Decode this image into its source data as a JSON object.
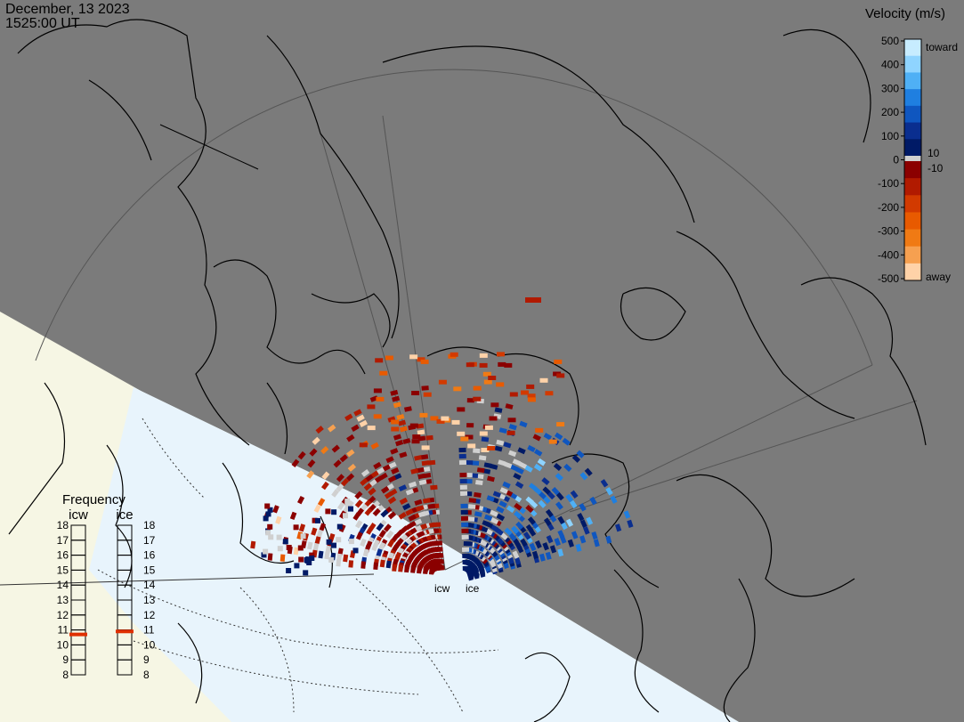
{
  "header": {
    "date": "December, 13 2023",
    "time": "1525:00 UT"
  },
  "legend": {
    "title": "Velocity (m/s)",
    "ticks": [
      "500",
      "400",
      "300",
      "200",
      "100",
      "0",
      "-100",
      "-200",
      "-300",
      "-400",
      "-500"
    ],
    "toward_label": "toward",
    "away_label": "away",
    "near_zero_pos": "10",
    "near_zero_neg": "-10",
    "colors_toward": [
      "#c7ecff",
      "#8fd4ff",
      "#4fb0f5",
      "#1f7fe0",
      "#0f56bf",
      "#0a2e8f",
      "#001a66"
    ],
    "colors_away": [
      "#8b0000",
      "#b11a00",
      "#d23a00",
      "#e85a00",
      "#f07a14",
      "#f6a050",
      "#ffd2a8"
    ],
    "zero_band": "#d0d0d0"
  },
  "frequency": {
    "title": "Frequency",
    "radars": [
      {
        "name": "icw",
        "value_mhz": 10.7
      },
      {
        "name": "ice",
        "value_mhz": 10.9
      }
    ],
    "ticks": [
      "18",
      "17",
      "16",
      "15",
      "14",
      "13",
      "12",
      "11",
      "10",
      "9",
      "8"
    ],
    "marker_color": "#e03000"
  },
  "radar_labels": {
    "icw": "icw",
    "ice": "ice"
  },
  "map_colors": {
    "night": "#7b7b7b",
    "day_land": "#f6f6e4",
    "day_ocean": "#e8f4fc",
    "coast": "#000000"
  }
}
